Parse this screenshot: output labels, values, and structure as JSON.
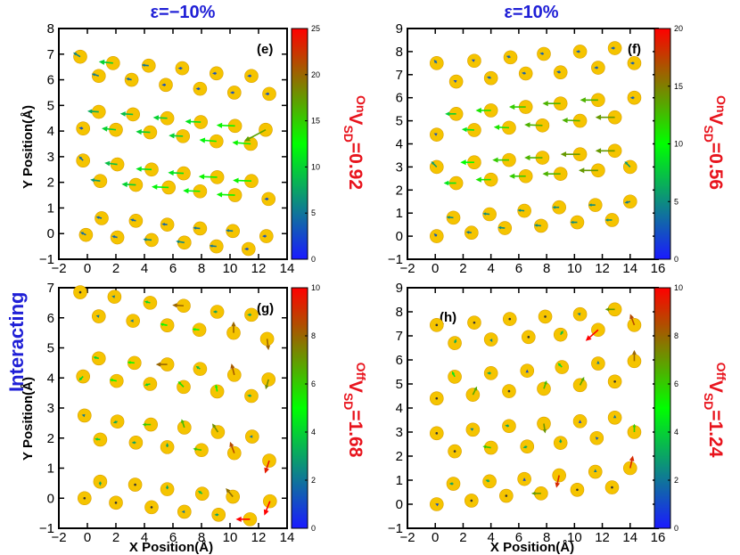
{
  "figure": {
    "side_label": "Interacting",
    "colors": {
      "atom": "#f5c400",
      "atom_edge": "#d99e00",
      "header_text": "#1f1fd6",
      "vsd_text": "#e8141d"
    }
  },
  "chart_data": [
    {
      "type": "scatter",
      "id": "e",
      "panel_label": "(e)",
      "header": "ε=−10%",
      "vsd_prefix": "On",
      "vsd_text": "V",
      "vsd_sub": "SD",
      "vsd_value": "=0.92",
      "xlabel": "",
      "ylabel": "Y Position(Å)",
      "xlim": [
        -2,
        14
      ],
      "ylim": [
        -1,
        8
      ],
      "xticks": [
        "−2",
        "0",
        "2",
        "4",
        "6",
        "8",
        "10",
        "12",
        "14"
      ],
      "yticks": [
        "−1",
        "0",
        "1",
        "2",
        "3",
        "4",
        "5",
        "6",
        "7",
        "8"
      ],
      "colorbar": {
        "min": 0,
        "max": 25,
        "ticks": [
          "0",
          "5",
          "10",
          "15",
          "20",
          "25"
        ]
      },
      "atoms": [
        [
          -0.5,
          6.9,
          -0.5,
          0.3
        ],
        [
          0.8,
          6.15,
          -0.5,
          0.15
        ],
        [
          1.8,
          6.65,
          -1.0,
          0.1
        ],
        [
          3.1,
          6.0,
          -0.4,
          0.1
        ],
        [
          4.3,
          6.55,
          -0.5,
          0.05
        ],
        [
          5.5,
          5.8,
          -0.3,
          0
        ],
        [
          6.65,
          6.45,
          -0.3,
          0
        ],
        [
          7.9,
          5.65,
          -0.3,
          0
        ],
        [
          9.05,
          6.25,
          -0.3,
          0
        ],
        [
          10.3,
          5.5,
          -0.3,
          0
        ],
        [
          11.5,
          6.15,
          -0.3,
          0
        ],
        [
          12.75,
          5.45,
          -0.3,
          0
        ],
        [
          -0.3,
          4.1,
          -0.3,
          0.05
        ],
        [
          0.8,
          4.75,
          -0.8,
          0.05
        ],
        [
          2.0,
          4.05,
          -1.0,
          0.1
        ],
        [
          3.2,
          4.65,
          -0.9,
          0.05
        ],
        [
          4.4,
          3.95,
          -1.0,
          0.05
        ],
        [
          5.6,
          4.5,
          -1.0,
          0.05
        ],
        [
          6.7,
          3.8,
          -1.0,
          0.05
        ],
        [
          7.95,
          4.35,
          -1.1,
          0.05
        ],
        [
          9.05,
          3.6,
          -1.2,
          0.1
        ],
        [
          10.35,
          4.2,
          -1.3,
          0.05
        ],
        [
          11.45,
          3.5,
          -1.3,
          0.1
        ],
        [
          12.5,
          4.05,
          -1.5,
          -0.8
        ],
        [
          -0.3,
          2.85,
          -0.3,
          0.3
        ],
        [
          0.9,
          2.05,
          -0.7,
          0.1
        ],
        [
          2.1,
          2.7,
          -0.9,
          0.1
        ],
        [
          3.4,
          1.9,
          -1.0,
          0.05
        ],
        [
          4.5,
          2.5,
          -1.1,
          0.05
        ],
        [
          5.7,
          1.8,
          -1.2,
          0.05
        ],
        [
          6.75,
          2.35,
          -1.1,
          0.05
        ],
        [
          7.9,
          1.65,
          -1.2,
          0.05
        ],
        [
          9.1,
          2.2,
          -1.3,
          0.05
        ],
        [
          10.35,
          1.5,
          -1.3,
          0.05
        ],
        [
          11.5,
          2.05,
          -1.3,
          0.05
        ],
        [
          12.7,
          1.35,
          -0.3,
          0
        ],
        [
          -0.1,
          -0.05,
          -0.4,
          0.2
        ],
        [
          1.0,
          0.6,
          -0.4,
          0.1
        ],
        [
          2.1,
          -0.15,
          -0.4,
          0.1
        ],
        [
          3.4,
          0.5,
          -0.4,
          0.1
        ],
        [
          4.5,
          -0.25,
          -0.6,
          0.05
        ],
        [
          5.6,
          0.35,
          -0.4,
          0.05
        ],
        [
          6.8,
          -0.35,
          -0.6,
          0.1
        ],
        [
          7.9,
          0.2,
          -0.5,
          0.05
        ],
        [
          9.05,
          -0.5,
          -0.5,
          0.05
        ],
        [
          10.2,
          0.1,
          -0.5,
          0.05
        ],
        [
          11.3,
          -0.6,
          -0.3,
          0
        ],
        [
          12.55,
          -0.1,
          -0.3,
          0
        ]
      ]
    },
    {
      "type": "scatter",
      "id": "f",
      "panel_label": "(f)",
      "header": "ε=10%",
      "vsd_prefix": "On",
      "vsd_text": "V",
      "vsd_sub": "SD",
      "vsd_value": "=0.56",
      "xlabel": "",
      "ylabel": "",
      "xlim": [
        -2,
        16
      ],
      "ylim": [
        -1,
        9
      ],
      "xticks": [
        "−2",
        "0",
        "2",
        "4",
        "6",
        "8",
        "10",
        "12",
        "14",
        "16"
      ],
      "yticks": [
        "−1",
        "0",
        "1",
        "2",
        "3",
        "4",
        "5",
        "6",
        "7",
        "8",
        "9"
      ],
      "colorbar": {
        "min": 0,
        "max": 20,
        "ticks": [
          "0",
          "5",
          "10",
          "15",
          "20"
        ]
      },
      "atoms": [
        [
          0.1,
          7.5,
          -0.2,
          0.25
        ],
        [
          1.5,
          6.7,
          -0.2,
          0.1
        ],
        [
          2.8,
          7.6,
          -0.2,
          0.1
        ],
        [
          4.0,
          6.85,
          -0.3,
          0.1
        ],
        [
          5.4,
          7.75,
          -0.3,
          0.1
        ],
        [
          6.5,
          7.05,
          -0.3,
          0.05
        ],
        [
          7.8,
          7.9,
          -0.3,
          0.05
        ],
        [
          9.0,
          7.1,
          -0.3,
          0.05
        ],
        [
          10.4,
          8.0,
          -0.3,
          0
        ],
        [
          11.7,
          7.3,
          -0.3,
          0
        ],
        [
          12.9,
          8.15,
          -0.3,
          0
        ],
        [
          14.3,
          7.5,
          -0.3,
          0
        ],
        [
          0.1,
          4.4,
          -0.2,
          0.1
        ],
        [
          1.5,
          5.3,
          -0.8,
          0
        ],
        [
          2.8,
          4.6,
          -0.9,
          0.05
        ],
        [
          4.0,
          5.45,
          -1.1,
          0
        ],
        [
          5.3,
          4.7,
          -1.1,
          0.05
        ],
        [
          6.5,
          5.6,
          -1.2,
          0
        ],
        [
          7.7,
          4.8,
          -1.3,
          0.05
        ],
        [
          9.0,
          5.75,
          -1.3,
          0
        ],
        [
          10.4,
          5.0,
          -1.3,
          0.05
        ],
        [
          11.7,
          5.9,
          -1.3,
          0
        ],
        [
          12.9,
          5.15,
          -1.4,
          0
        ],
        [
          14.3,
          6.0,
          -0.3,
          0
        ],
        [
          0.1,
          3.0,
          -0.4,
          0.4
        ],
        [
          1.5,
          2.3,
          -0.9,
          0
        ],
        [
          2.8,
          3.2,
          -1.0,
          0
        ],
        [
          4.0,
          2.45,
          -1.1,
          0
        ],
        [
          5.3,
          3.3,
          -1.2,
          0
        ],
        [
          6.5,
          2.6,
          -1.2,
          0
        ],
        [
          7.7,
          3.4,
          -1.3,
          0
        ],
        [
          9.0,
          2.7,
          -1.3,
          0
        ],
        [
          10.4,
          3.55,
          -1.4,
          0
        ],
        [
          11.7,
          2.85,
          -1.4,
          0
        ],
        [
          12.9,
          3.7,
          -1.4,
          0
        ],
        [
          14.0,
          3.0,
          -0.4,
          0.4
        ],
        [
          0.1,
          0.0,
          -0.2,
          0.2
        ],
        [
          1.3,
          0.8,
          -0.5,
          0.05
        ],
        [
          2.6,
          0.15,
          -0.4,
          0.05
        ],
        [
          3.9,
          0.95,
          -0.5,
          0.05
        ],
        [
          5.0,
          0.35,
          -0.5,
          0.05
        ],
        [
          6.4,
          1.1,
          -0.5,
          0.05
        ],
        [
          7.6,
          0.45,
          -0.5,
          0.05
        ],
        [
          8.9,
          1.25,
          -0.5,
          0
        ],
        [
          10.2,
          0.6,
          -0.5,
          0
        ],
        [
          11.5,
          1.35,
          -0.5,
          0
        ],
        [
          12.7,
          0.7,
          -0.5,
          0
        ],
        [
          14.0,
          1.5,
          -0.4,
          -0.1
        ]
      ]
    },
    {
      "type": "scatter",
      "id": "g",
      "panel_label": "(g)",
      "header": "",
      "vsd_prefix": "Off",
      "vsd_text": "V",
      "vsd_sub": "SD",
      "vsd_value": "=1.68",
      "xlabel": "X Position(Å)",
      "ylabel": "Y Position(Å)",
      "xlim": [
        -2,
        14
      ],
      "ylim": [
        -1,
        7
      ],
      "xticks": [
        "−2",
        "0",
        "2",
        "4",
        "6",
        "8",
        "10",
        "12",
        "14"
      ],
      "yticks": [
        "−1",
        "0",
        "1",
        "2",
        "3",
        "4",
        "5",
        "6",
        "7"
      ],
      "colorbar": {
        "min": 0,
        "max": 10,
        "ticks": [
          "0",
          "2",
          "4",
          "6",
          "8",
          "10"
        ]
      },
      "atoms": [
        [
          -0.5,
          6.85,
          0,
          0
        ],
        [
          0.8,
          6.05,
          -0.2,
          0.05
        ],
        [
          1.9,
          6.7,
          -0.2,
          0.05
        ],
        [
          3.2,
          5.9,
          -0.2,
          0
        ],
        [
          4.4,
          6.5,
          -0.4,
          0.1
        ],
        [
          5.6,
          5.75,
          -0.5,
          0.1
        ],
        [
          6.75,
          6.4,
          -0.8,
          0.05
        ],
        [
          7.85,
          5.6,
          -0.5,
          0.05
        ],
        [
          9.1,
          6.2,
          -0.3,
          0
        ],
        [
          10.25,
          5.5,
          0,
          0.8
        ],
        [
          11.5,
          6.1,
          -0.3,
          0
        ],
        [
          12.6,
          5.3,
          0.1,
          -0.8
        ],
        [
          -0.3,
          4.05,
          -0.3,
          -0.3
        ],
        [
          0.8,
          4.65,
          -0.4,
          0.1
        ],
        [
          2.05,
          3.9,
          -0.5,
          0.1
        ],
        [
          3.3,
          4.5,
          -0.5,
          0.05
        ],
        [
          4.4,
          3.8,
          -0.4,
          -0.1
        ],
        [
          5.6,
          4.45,
          -0.8,
          0
        ],
        [
          6.75,
          3.7,
          -0.4,
          0.4
        ],
        [
          7.9,
          4.3,
          -0.3,
          0.2
        ],
        [
          9.1,
          3.55,
          -0.1,
          0.5
        ],
        [
          10.3,
          4.1,
          -0.2,
          0.8
        ],
        [
          11.5,
          3.4,
          -0.3,
          0.05
        ],
        [
          12.7,
          3.95,
          -0.2,
          -0.7
        ],
        [
          -0.2,
          2.75,
          -0.2,
          0.05
        ],
        [
          0.9,
          1.95,
          -0.4,
          0.05
        ],
        [
          2.1,
          2.55,
          -0.3,
          -0.1
        ],
        [
          3.4,
          1.85,
          -0.3,
          0
        ],
        [
          4.45,
          2.45,
          -0.6,
          0
        ],
        [
          5.6,
          1.7,
          0,
          0.3
        ],
        [
          6.8,
          2.35,
          -0.2,
          0.6
        ],
        [
          8.0,
          1.6,
          -0.6,
          0.1
        ],
        [
          9.15,
          2.2,
          -0.4,
          0.6
        ],
        [
          10.3,
          1.5,
          -0.3,
          0.8
        ],
        [
          11.55,
          2.05,
          -0.2,
          0
        ],
        [
          12.75,
          1.25,
          -0.3,
          -0.9
        ],
        [
          -0.2,
          0.0,
          0,
          0
        ],
        [
          0.9,
          0.55,
          0,
          -0.3
        ],
        [
          2.0,
          -0.15,
          0,
          0
        ],
        [
          3.35,
          0.45,
          0,
          0
        ],
        [
          4.5,
          -0.3,
          0,
          0
        ],
        [
          5.6,
          0.3,
          0,
          0.3
        ],
        [
          6.8,
          -0.45,
          -0.2,
          0
        ],
        [
          8.05,
          0.15,
          -0.3,
          0.2
        ],
        [
          9.2,
          -0.55,
          -0.3,
          0
        ],
        [
          10.2,
          0.05,
          -0.5,
          0.6
        ],
        [
          11.4,
          -0.7,
          -1.0,
          0
        ],
        [
          12.8,
          -0.1,
          -0.4,
          -1.0
        ]
      ]
    },
    {
      "type": "scatter",
      "id": "h",
      "panel_label": "(h)",
      "header": "",
      "vsd_prefix": "Off",
      "vsd_text": "V",
      "vsd_sub": "SD",
      "vsd_value": "=1.24",
      "xlabel": "X Position(Å)",
      "ylabel": "",
      "xlim": [
        -2,
        16
      ],
      "ylim": [
        -1,
        9
      ],
      "xticks": [
        "−2",
        "0",
        "2",
        "4",
        "6",
        "8",
        "10",
        "12",
        "14",
        "16"
      ],
      "yticks": [
        "−1",
        "0",
        "1",
        "2",
        "3",
        "4",
        "5",
        "6",
        "7",
        "8",
        "9"
      ],
      "colorbar": {
        "min": 0,
        "max": 10,
        "ticks": [
          "0",
          "2",
          "4",
          "6",
          "8",
          "10"
        ]
      },
      "atoms": [
        [
          0.1,
          7.45,
          0,
          0
        ],
        [
          1.4,
          6.7,
          0.1,
          0.3
        ],
        [
          2.8,
          7.55,
          0,
          0
        ],
        [
          4.0,
          6.85,
          0.1,
          -0.2
        ],
        [
          5.35,
          7.7,
          0,
          0
        ],
        [
          6.7,
          6.95,
          0,
          0
        ],
        [
          7.9,
          7.8,
          0,
          0
        ],
        [
          9.0,
          7.05,
          0.2,
          0.3
        ],
        [
          10.4,
          7.9,
          -0.2,
          0.05
        ],
        [
          11.7,
          7.25,
          -0.9,
          -0.8
        ],
        [
          12.9,
          8.1,
          -0.7,
          0
        ],
        [
          14.3,
          7.45,
          -0.3,
          0.8
        ],
        [
          0.1,
          4.4,
          0,
          0
        ],
        [
          1.4,
          5.3,
          -0.2,
          0.4
        ],
        [
          2.7,
          4.55,
          0.3,
          0.6
        ],
        [
          4.0,
          5.45,
          -0.3,
          0
        ],
        [
          5.3,
          4.7,
          0,
          0
        ],
        [
          6.6,
          5.55,
          0,
          0.1
        ],
        [
          7.8,
          4.8,
          0.2,
          0.6
        ],
        [
          9.1,
          5.7,
          -0.3,
          0.3
        ],
        [
          10.4,
          4.95,
          0.3,
          0.6
        ],
        [
          11.7,
          5.85,
          0,
          0.2
        ],
        [
          12.9,
          5.1,
          0,
          0
        ],
        [
          14.3,
          5.95,
          0,
          0.8
        ],
        [
          0.1,
          2.95,
          0,
          0
        ],
        [
          1.4,
          2.2,
          0,
          0
        ],
        [
          2.7,
          3.1,
          -0.2,
          0.1
        ],
        [
          4.0,
          2.35,
          -0.6,
          0.1
        ],
        [
          5.3,
          3.25,
          -0.3,
          0.05
        ],
        [
          6.6,
          2.4,
          -0.3,
          -0.1
        ],
        [
          7.8,
          3.35,
          0.1,
          -0.7
        ],
        [
          9.0,
          2.55,
          0,
          0.3
        ],
        [
          10.4,
          3.45,
          0,
          0.1
        ],
        [
          11.6,
          2.75,
          -0.1,
          0.1
        ],
        [
          12.9,
          3.6,
          0,
          0.2
        ],
        [
          14.3,
          3.0,
          0,
          0.6
        ],
        [
          0.1,
          0.0,
          -0.1,
          0.05
        ],
        [
          1.3,
          0.85,
          -0.3,
          0
        ],
        [
          2.6,
          0.15,
          0,
          0
        ],
        [
          3.9,
          0.95,
          -0.3,
          0.1
        ],
        [
          5.1,
          0.35,
          0,
          0
        ],
        [
          6.4,
          1.05,
          0,
          0.1
        ],
        [
          7.6,
          0.45,
          -0.7,
          0
        ],
        [
          8.9,
          1.2,
          -0.2,
          -0.9
        ],
        [
          10.2,
          0.6,
          0,
          0
        ],
        [
          11.5,
          1.35,
          0,
          0.2
        ],
        [
          12.7,
          0.7,
          0,
          0
        ],
        [
          14.0,
          1.5,
          0.2,
          0.9
        ]
      ]
    }
  ]
}
